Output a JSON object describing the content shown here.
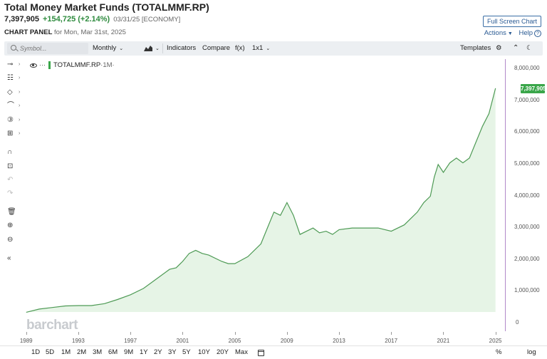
{
  "header": {
    "title": "Total Money Market Funds (TOTALMMF.RP)",
    "last": "7,397,905",
    "change": "+154,725 (+2.14%)",
    "date": "03/31/25 [ECONOMY]",
    "panel_label": "CHART PANEL",
    "panel_date": "for Mon, Mar 31st, 2025",
    "fullscreen": "Full Screen Chart",
    "actions": "Actions",
    "help": "Help",
    "help_icon": "?"
  },
  "toolbar": {
    "symbol_placeholder": "Symbol...",
    "period": "Monthly",
    "indicators": "Indicators",
    "compare": "Compare",
    "fx": "f(x)",
    "layout": "1x1",
    "templates": "Templates"
  },
  "legend": {
    "eye_icon": "eye-icon",
    "dots": "···",
    "symbol": "TOTALMMF.RP",
    "period": "·1M·"
  },
  "last_price_tag": "7,397,905",
  "watermark": "barchart",
  "bottombar": {
    "ranges": [
      "1D",
      "5D",
      "1M",
      "2M",
      "3M",
      "6M",
      "9M",
      "1Y",
      "2Y",
      "3Y",
      "5Y",
      "10Y",
      "20Y",
      "Max"
    ],
    "percent": "%",
    "log": "log"
  },
  "colors": {
    "line": "#4e9a55",
    "fill": "#e6f4e6",
    "accent": "#3aa64a",
    "axis": "#b189c9"
  },
  "chart_data": {
    "type": "area",
    "title": "Total Money Market Funds (TOTALMMF.RP)",
    "ylim": [
      0,
      8000000
    ],
    "y_ticks": [
      "0",
      "1,000,000",
      "2,000,000",
      "3,000,000",
      "4,000,000",
      "5,000,000",
      "6,000,000",
      "7,000,000",
      "8,000,000"
    ],
    "x_ticks": [
      "1989",
      "1993",
      "1997",
      "2001",
      "2005",
      "2009",
      "2013",
      "2017",
      "2021",
      "2025"
    ],
    "series": [
      {
        "x": [
          1989.0,
          1990.0,
          1991.0,
          1992.0,
          1993.0,
          1994.0,
          1995.0,
          1996.0,
          1997.0,
          1998.0,
          1999.0,
          2000.0,
          2000.5,
          2001.0,
          2001.5,
          2002.0,
          2002.5,
          2003.0,
          2004.0,
          2004.5,
          2005.0,
          2006.0,
          2007.0,
          2007.5,
          2008.0,
          2008.5,
          2009.0,
          2009.5,
          2010.0,
          2011.0,
          2011.5,
          2012.0,
          2012.5,
          2013.0,
          2014.0,
          2015.0,
          2016.0,
          2017.0,
          2018.0,
          2019.0,
          2019.5,
          2020.0,
          2020.3,
          2020.6,
          2021.0,
          2021.5,
          2022.0,
          2022.5,
          2023.0,
          2023.5,
          2024.0,
          2024.5,
          2025.0
        ],
        "values": [
          350000,
          450000,
          500000,
          550000,
          560000,
          560000,
          620000,
          750000,
          900000,
          1100000,
          1400000,
          1700000,
          1750000,
          1950000,
          2200000,
          2300000,
          2200000,
          2150000,
          1950000,
          1880000,
          1880000,
          2100000,
          2500000,
          3000000,
          3500000,
          3400000,
          3800000,
          3400000,
          2800000,
          3000000,
          2850000,
          2900000,
          2800000,
          2950000,
          3000000,
          3000000,
          3000000,
          2900000,
          3100000,
          3500000,
          3800000,
          4000000,
          4600000,
          5000000,
          4750000,
          5050000,
          5200000,
          5050000,
          5200000,
          5700000,
          6200000,
          6600000,
          7397905
        ]
      }
    ]
  }
}
